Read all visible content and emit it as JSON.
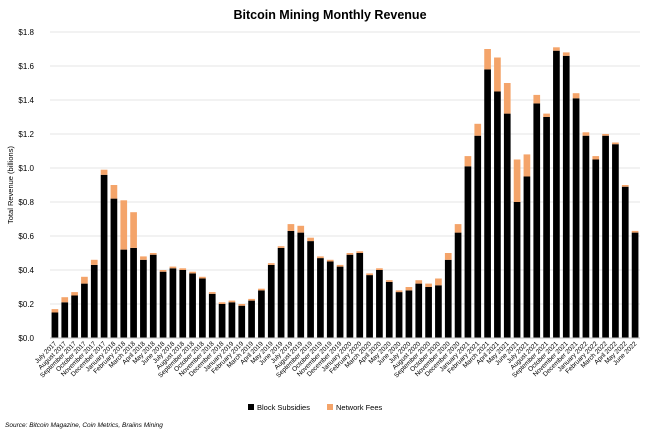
{
  "chart_data": {
    "type": "bar",
    "stacked": true,
    "title": "Bitcoin Mining Monthly Revenue",
    "ylabel": "Total Revenue (billions)",
    "xlabel": "",
    "ylim": [
      0,
      1.8
    ],
    "yticks": [
      "$0.0",
      "$0.2",
      "$0.4",
      "$0.6",
      "$0.8",
      "$1.0",
      "$1.2",
      "$1.4",
      "$1.6",
      "$1.8"
    ],
    "legend_position": "bottom",
    "source": "Source: Bitcoin Magazine, Coin Metrics, Braiins Mining",
    "categories": [
      "July 2017",
      "August 2017",
      "September 2017",
      "October 2017",
      "November 2017",
      "December 2017",
      "January 2018",
      "February 2018",
      "March 2018",
      "April 2018",
      "May 2018",
      "June 2018",
      "July 2018",
      "August 2018",
      "September 2018",
      "October 2018",
      "November 2018",
      "December 2018",
      "January 2019",
      "February 2019",
      "March 2019",
      "April 2019",
      "May 2019",
      "June 2019",
      "July 2019",
      "August 2019",
      "September 2019",
      "October 2019",
      "November 2019",
      "December 2019",
      "January 2020",
      "February 2020",
      "March 2020",
      "April 2020",
      "May 2020",
      "June 2020",
      "July 2020",
      "August 2020",
      "September 2020",
      "October 2020",
      "November 2020",
      "December 2020",
      "January 2021",
      "February 2021",
      "March 2021",
      "April 2021",
      "May 2021",
      "June 2021",
      "July 2021",
      "August 2021",
      "September 2021",
      "October 2021",
      "November 2021",
      "December 2021",
      "January 2022",
      "February 2022",
      "March 2022",
      "April 2022",
      "May 2022",
      "June 2022"
    ],
    "series": [
      {
        "name": "Block Subsidies",
        "color": "#000000",
        "values": [
          0.15,
          0.21,
          0.25,
          0.32,
          0.43,
          0.96,
          0.82,
          0.52,
          0.53,
          0.46,
          0.49,
          0.39,
          0.41,
          0.4,
          0.38,
          0.35,
          0.26,
          0.2,
          0.21,
          0.19,
          0.22,
          0.28,
          0.43,
          0.53,
          0.63,
          0.62,
          0.57,
          0.47,
          0.45,
          0.42,
          0.49,
          0.5,
          0.37,
          0.4,
          0.33,
          0.27,
          0.28,
          0.32,
          0.3,
          0.31,
          0.46,
          0.62,
          1.01,
          1.19,
          1.58,
          1.45,
          1.32,
          0.8,
          0.95,
          1.38,
          1.3,
          1.69,
          1.66,
          1.41,
          1.19,
          1.05,
          1.19,
          1.14,
          0.89,
          0.62
        ]
      },
      {
        "name": "Network Fees",
        "color": "#f4a46a",
        "values": [
          0.02,
          0.03,
          0.02,
          0.04,
          0.03,
          0.03,
          0.08,
          0.29,
          0.21,
          0.02,
          0.01,
          0.01,
          0.01,
          0.01,
          0.01,
          0.01,
          0.01,
          0.01,
          0.01,
          0.01,
          0.01,
          0.01,
          0.01,
          0.01,
          0.04,
          0.04,
          0.02,
          0.01,
          0.01,
          0.01,
          0.01,
          0.01,
          0.01,
          0.01,
          0.01,
          0.01,
          0.02,
          0.02,
          0.02,
          0.04,
          0.04,
          0.05,
          0.06,
          0.07,
          0.12,
          0.2,
          0.18,
          0.25,
          0.13,
          0.05,
          0.02,
          0.02,
          0.02,
          0.03,
          0.02,
          0.02,
          0.01,
          0.01,
          0.01,
          0.01
        ]
      }
    ]
  }
}
